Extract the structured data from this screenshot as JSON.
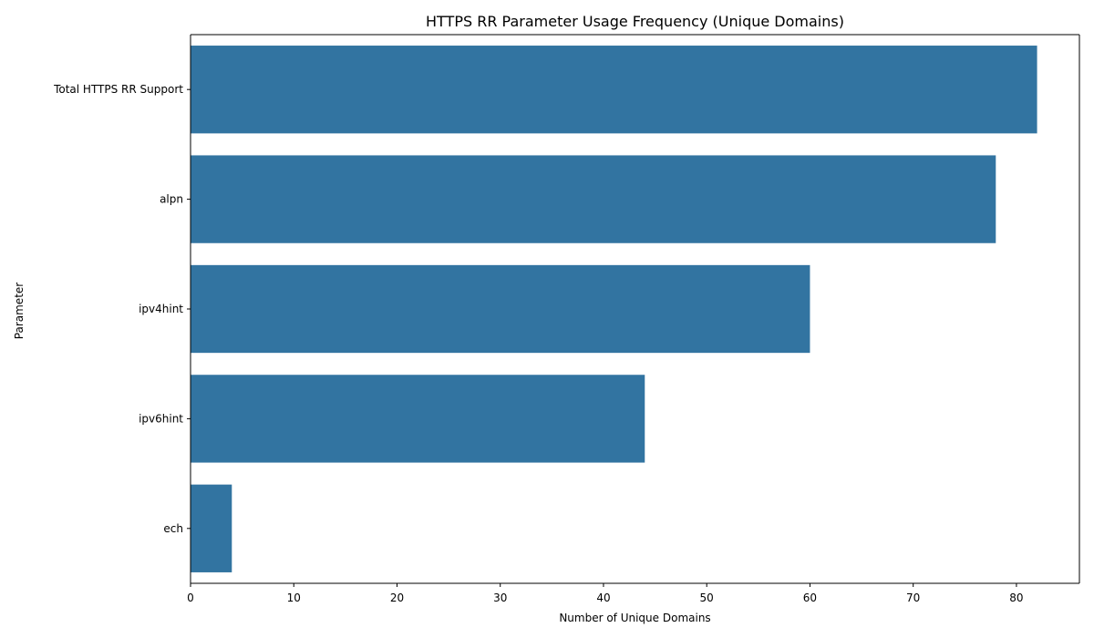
{
  "chart_data": {
    "type": "bar",
    "orientation": "horizontal",
    "title": "HTTPS RR Parameter Usage Frequency (Unique Domains)",
    "xlabel": "Number of Unique Domains",
    "ylabel": "Parameter",
    "categories": [
      "Total HTTPS RR Support",
      "alpn",
      "ipv4hint",
      "ipv6hint",
      "ech"
    ],
    "values": [
      82,
      78,
      60,
      44,
      4
    ],
    "xlim": [
      0,
      86.1
    ],
    "xticks": [
      0,
      10,
      20,
      30,
      40,
      50,
      60,
      70,
      80
    ],
    "bar_color": "#3274a1",
    "grid": false,
    "legend": "none"
  }
}
